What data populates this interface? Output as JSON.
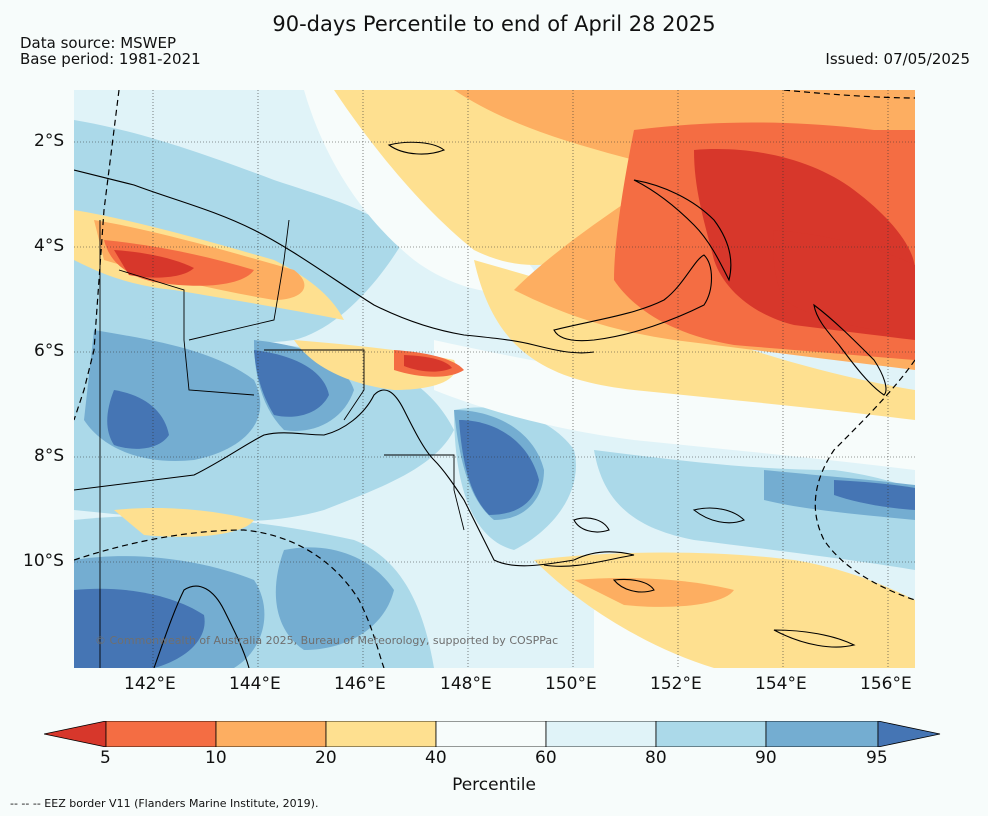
{
  "title": "90-days Percentile to end of April 28 2025",
  "data_source": "Data source: MSWEP",
  "base_period": "Base period: 1981-2021",
  "issued": "Issued: 07/05/2025",
  "copyright": "© Commonwealth of Australia 2025, Bureau of Meteorology, supported by COSPPac",
  "footnote": "--  --  -- EEZ border V11 (Flanders Marine Institute, 2019).",
  "lat_ticks": [
    "2°S",
    "4°S",
    "6°S",
    "8°S",
    "10°S"
  ],
  "lon_ticks": [
    "142°E",
    "144°E",
    "146°E",
    "148°E",
    "150°E",
    "152°E",
    "154°E",
    "156°E"
  ],
  "colorbar": {
    "label": "Percentile",
    "tick_labels": [
      "5",
      "10",
      "20",
      "40",
      "60",
      "80",
      "90",
      "95"
    ],
    "colors": {
      "lt5": "#d7372b",
      "5_10": "#f46d43",
      "10_20": "#fdae61",
      "20_40": "#fee090",
      "40_60": "#f7fcfb",
      "60_80": "#e0f3f8",
      "80_90": "#abd9e9",
      "90_95": "#74add1",
      "gt95": "#4575b4"
    }
  }
}
